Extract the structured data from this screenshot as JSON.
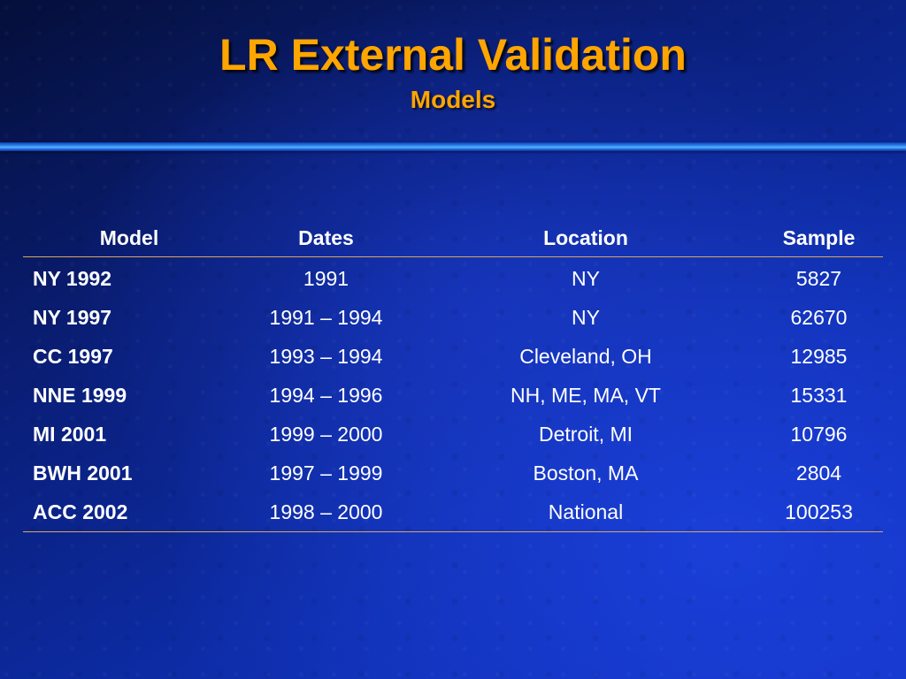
{
  "slide": {
    "title": "LR External Validation",
    "subtitle": "Models"
  },
  "table": {
    "headers": [
      "Model",
      "Dates",
      "Location",
      "Sample"
    ],
    "rows": [
      {
        "model": "NY 1992",
        "dates": "1991",
        "location": "NY",
        "sample": "5827"
      },
      {
        "model": "NY 1997",
        "dates": "1991 – 1994",
        "location": "NY",
        "sample": "62670"
      },
      {
        "model": "CC 1997",
        "dates": "1993 – 1994",
        "location": "Cleveland, OH",
        "sample": "12985"
      },
      {
        "model": "NNE 1999",
        "dates": "1994 – 1996",
        "location": "NH, ME, MA, VT",
        "sample": "15331"
      },
      {
        "model": "MI 2001",
        "dates": "1999 – 2000",
        "location": "Detroit, MI",
        "sample": "10796"
      },
      {
        "model": "BWH 2001",
        "dates": "1997 – 1999",
        "location": "Boston, MA",
        "sample": "2804"
      },
      {
        "model": "ACC 2002",
        "dates": "1998 – 2000",
        "location": "National",
        "sample": "100253"
      }
    ]
  },
  "colors": {
    "title": "#ffa500",
    "text": "#ffffff",
    "rule_line": "#d9a860",
    "background_dark": "#050f3a",
    "background_light": "#1433c8"
  }
}
